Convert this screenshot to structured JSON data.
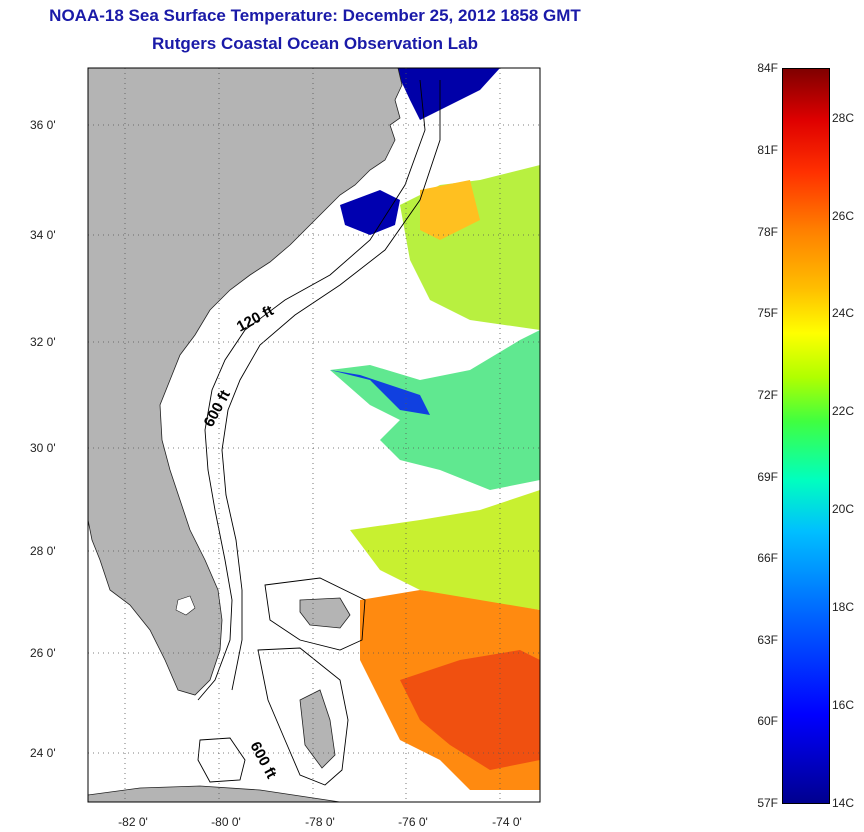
{
  "title": {
    "line1": "NOAA-18 Sea Surface Temperature:  December 25, 2012 1858 GMT",
    "line2": "Rutgers Coastal Ocean Observation Lab"
  },
  "map": {
    "lat_range": [
      23,
      37.1
    ],
    "lon_range": [
      -83,
      -73.3
    ],
    "lat_ticks": [
      "36 0'",
      "34 0'",
      "32 0'",
      "30 0'",
      "28 0'",
      "26 0'",
      "24 0'"
    ],
    "lon_ticks": [
      "-82 0'",
      "-80 0'",
      "-78 0'",
      "-76 0'",
      "-74 0'"
    ],
    "contour_labels": [
      "120 ft",
      "600 ft",
      "600 ft"
    ],
    "land_color": "#b4b4b4",
    "grid": true
  },
  "colorbar": {
    "fahrenheit_labels": [
      "84F",
      "81F",
      "78F",
      "75F",
      "72F",
      "69F",
      "66F",
      "63F",
      "60F",
      "57F"
    ],
    "celsius_labels": [
      "28C",
      "26C",
      "24C",
      "22C",
      "20C",
      "18C",
      "16C",
      "14C"
    ],
    "range_c": [
      14,
      29
    ],
    "range_f": [
      57,
      84
    ]
  }
}
